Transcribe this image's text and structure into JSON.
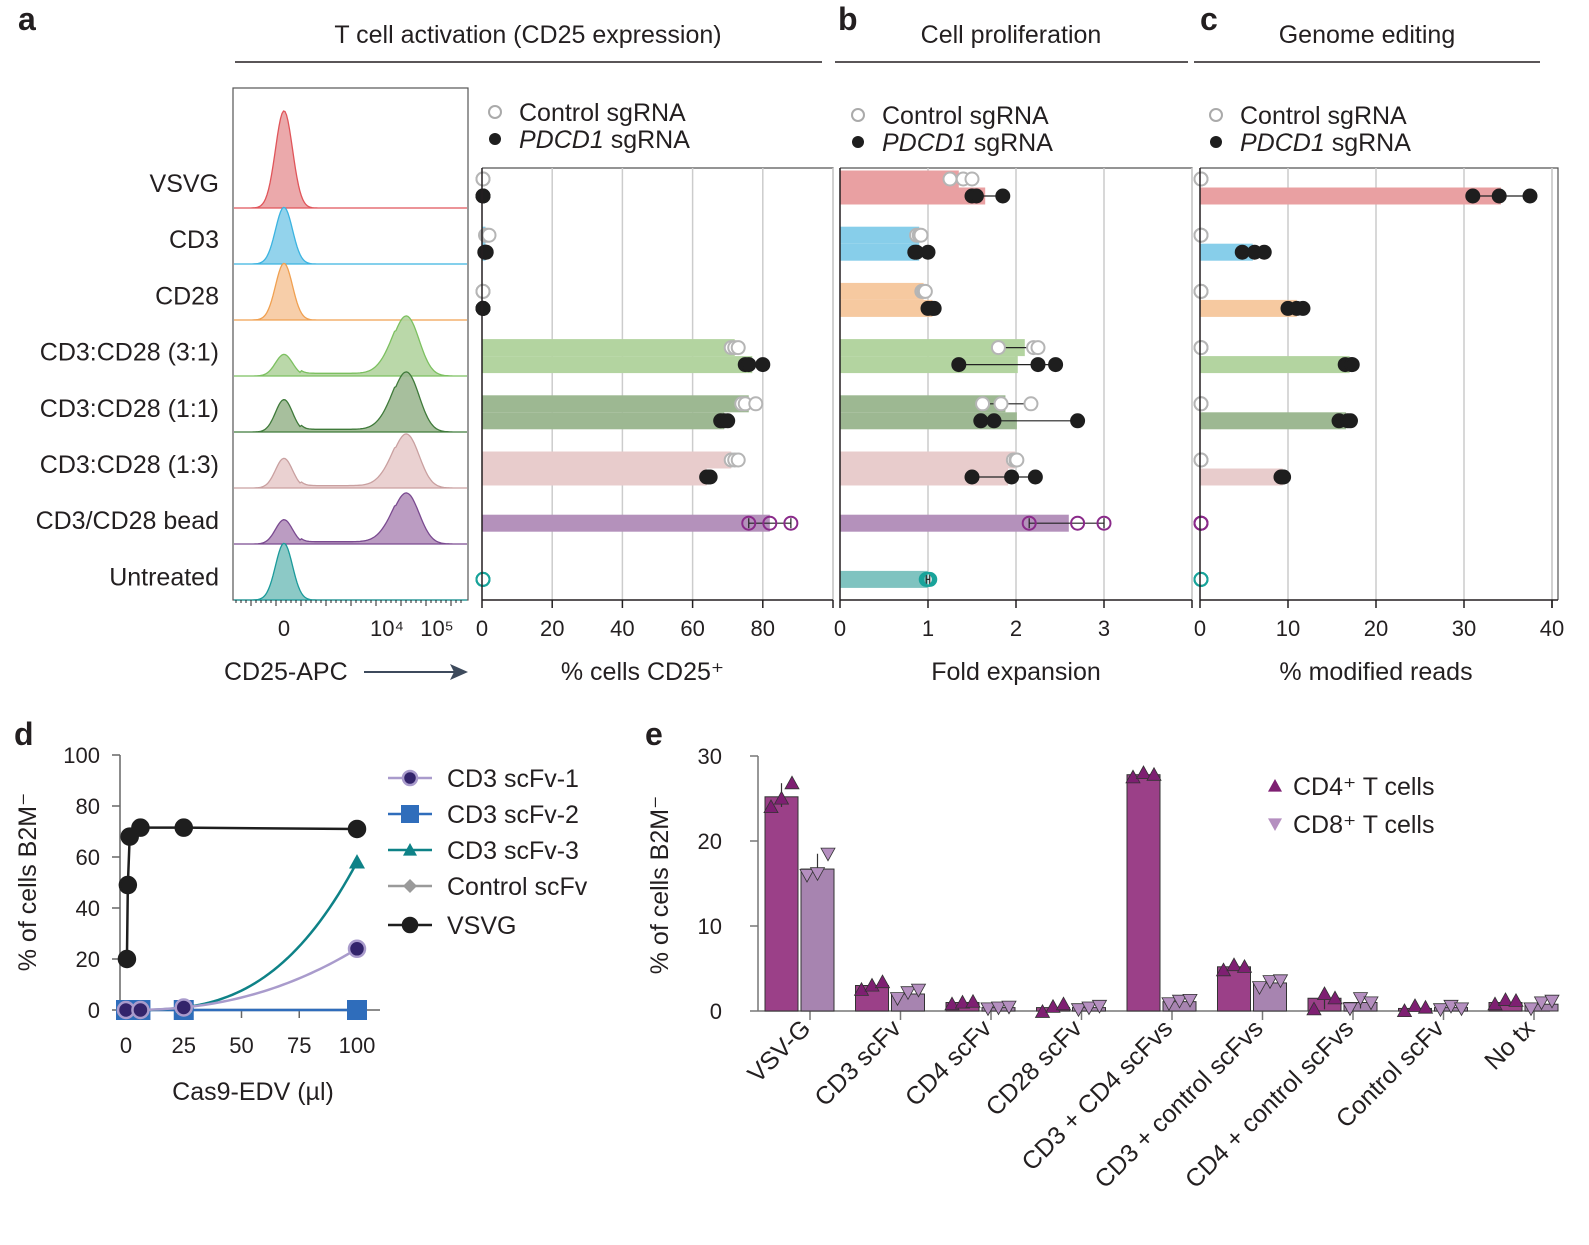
{
  "panel_labels": [
    "a",
    "b",
    "c",
    "d",
    "e"
  ],
  "legend_ab": {
    "control": "Control sgRNA",
    "pdcd1_gene": "PDCD1",
    "pdcd1_suffix": " sgRNA"
  },
  "row_labels": [
    "VSVG",
    "CD3",
    "CD28",
    "CD3:CD28 (3:1)",
    "CD3:CD28 (1:1)",
    "CD3:CD28 (1:3)",
    "CD3/CD28 bead",
    "Untreated"
  ],
  "row_colors": [
    "#e9a0a2",
    "#87ceea",
    "#f6c9a0",
    "#b3d4a0",
    "#9db892",
    "#e8cccc",
    "#b491bb",
    "#7fc3c0"
  ],
  "hist_colors": [
    "#e0555a",
    "#3bb3e0",
    "#f0a050",
    "#7cc060",
    "#3f7a3a",
    "#c9a0a0",
    "#7a4a90",
    "#1a9a9a"
  ],
  "single_marker_colors": {
    "CD3/CD28 bead": "#8a2a8a",
    "Untreated": "#19a39a"
  },
  "chart_data": [
    {
      "panel": "a",
      "type": "histogram",
      "title": "T cell activation (CD25 expression)",
      "xlabel": "CD25-APC",
      "x_ticks": [
        "0",
        "10⁴",
        "10⁵"
      ],
      "rows": [
        {
          "label": "VSVG",
          "low_peak": 1.8,
          "high_peak": 0
        },
        {
          "label": "CD3",
          "low_peak": 1.05,
          "high_peak": 0
        },
        {
          "label": "CD28",
          "low_peak": 1.05,
          "high_peak": 0
        },
        {
          "label": "CD3:CD28 (3:1)",
          "low_peak": 0.4,
          "high_peak": 1.0
        },
        {
          "label": "CD3:CD28 (1:1)",
          "low_peak": 0.6,
          "high_peak": 1.0
        },
        {
          "label": "CD3:CD28 (1:3)",
          "low_peak": 0.55,
          "high_peak": 0.9
        },
        {
          "label": "CD3/CD28 bead",
          "low_peak": 0.45,
          "high_peak": 0.85
        },
        {
          "label": "Untreated",
          "low_peak": 1.05,
          "high_peak": 0
        }
      ]
    },
    {
      "panel": "a",
      "type": "bar",
      "orientation": "horizontal",
      "xlabel": "% cells CD25⁺",
      "xlim": [
        0,
        100
      ],
      "ticks": [
        0,
        20,
        40,
        60,
        80
      ],
      "grid": true,
      "rows": [
        {
          "label": "VSVG",
          "control": {
            "mean": 0,
            "points": [
              0,
              0,
              0
            ]
          },
          "pdcd1": {
            "mean": 0,
            "points": [
              0,
              0,
              0
            ]
          }
        },
        {
          "label": "CD3",
          "control": {
            "mean": 1,
            "points": [
              1,
              1.5,
              2
            ]
          },
          "pdcd1": {
            "mean": 1,
            "points": [
              0.8,
              1,
              1.2
            ]
          }
        },
        {
          "label": "CD28",
          "control": {
            "mean": 0,
            "points": [
              0,
              0,
              0
            ]
          },
          "pdcd1": {
            "mean": 0,
            "points": [
              0,
              0,
              0
            ]
          }
        },
        {
          "label": "CD3:CD28 (3:1)",
          "control": {
            "mean": 72,
            "points": [
              71,
              72,
              73
            ]
          },
          "pdcd1": {
            "mean": 77,
            "points": [
              75,
              76,
              80
            ]
          }
        },
        {
          "label": "CD3:CD28 (1:1)",
          "control": {
            "mean": 76,
            "points": [
              74,
              75,
              78
            ]
          },
          "pdcd1": {
            "mean": 69,
            "points": [
              68,
              69,
              70
            ]
          }
        },
        {
          "label": "CD3:CD28 (1:3)",
          "control": {
            "mean": 71,
            "points": [
              71,
              72,
              73
            ]
          },
          "pdcd1": {
            "mean": 64,
            "points": [
              64,
              64.5,
              65
            ]
          }
        },
        {
          "label": "CD3/CD28 bead",
          "single": {
            "mean": 82,
            "points": [
              76,
              82,
              88
            ]
          }
        },
        {
          "label": "Untreated",
          "single": {
            "mean": 0,
            "points": [
              0,
              0,
              0
            ]
          }
        }
      ]
    },
    {
      "panel": "b",
      "type": "bar",
      "orientation": "horizontal",
      "title": "Cell proliferation",
      "xlabel": "Fold expansion",
      "xlim": [
        0,
        4
      ],
      "ticks": [
        0,
        1,
        2,
        3
      ],
      "grid": true,
      "rows": [
        {
          "label": "VSVG",
          "control": {
            "mean": 1.35,
            "points": [
              1.25,
              1.4,
              1.5
            ]
          },
          "pdcd1": {
            "mean": 1.65,
            "points": [
              1.5,
              1.55,
              1.85
            ]
          }
        },
        {
          "label": "CD3",
          "control": {
            "mean": 0.9,
            "points": [
              0.87,
              0.9,
              0.92
            ]
          },
          "pdcd1": {
            "mean": 0.9,
            "points": [
              0.85,
              0.87,
              1.0
            ]
          }
        },
        {
          "label": "CD28",
          "control": {
            "mean": 0.95,
            "points": [
              0.93,
              0.95,
              0.97
            ]
          },
          "pdcd1": {
            "mean": 1.05,
            "points": [
              1.0,
              1.05,
              1.07
            ]
          }
        },
        {
          "label": "CD3:CD28 (3:1)",
          "control": {
            "mean": 2.1,
            "points": [
              1.8,
              2.2,
              2.25
            ]
          },
          "pdcd1": {
            "mean": 2.02,
            "points": [
              1.35,
              2.25,
              2.45
            ]
          }
        },
        {
          "label": "CD3:CD28 (1:1)",
          "control": {
            "mean": 1.88,
            "points": [
              1.62,
              1.83,
              2.17
            ]
          },
          "pdcd1": {
            "mean": 2.01,
            "points": [
              1.6,
              1.75,
              2.7
            ]
          }
        },
        {
          "label": "CD3:CD28 (1:3)",
          "control": {
            "mean": 1.99,
            "points": [
              1.97,
              2.0,
              2.01
            ]
          },
          "pdcd1": {
            "mean": 1.91,
            "points": [
              1.5,
              1.95,
              2.22
            ]
          }
        },
        {
          "label": "CD3/CD28 bead",
          "single": {
            "mean": 2.6,
            "points": [
              2.15,
              2.7,
              3.0
            ]
          }
        },
        {
          "label": "Untreated",
          "single": {
            "mean": 1.0,
            "points": [
              0.98,
              1.0,
              1.02
            ]
          }
        }
      ]
    },
    {
      "panel": "c",
      "type": "bar",
      "orientation": "horizontal",
      "title": "Genome editing",
      "xlabel": "% modified reads",
      "xlim": [
        0,
        40
      ],
      "ticks": [
        0,
        10,
        20,
        30,
        40
      ],
      "grid": true,
      "rows": [
        {
          "label": "VSVG",
          "control": {
            "mean": 0,
            "points": [
              0,
              0,
              0
            ]
          },
          "pdcd1": {
            "mean": 34.2,
            "points": [
              31,
              34,
              37.5
            ]
          }
        },
        {
          "label": "CD3",
          "control": {
            "mean": 0,
            "points": [
              0,
              0,
              0
            ]
          },
          "pdcd1": {
            "mean": 6,
            "points": [
              4.8,
              6.2,
              7.3
            ]
          }
        },
        {
          "label": "CD28",
          "control": {
            "mean": 0,
            "points": [
              0,
              0,
              0
            ]
          },
          "pdcd1": {
            "mean": 11,
            "points": [
              10,
              11,
              11.7
            ]
          }
        },
        {
          "label": "CD3:CD28 (3:1)",
          "control": {
            "mean": 0,
            "points": [
              0,
              0,
              0
            ]
          },
          "pdcd1": {
            "mean": 17,
            "points": [
              16.5,
              17.2,
              17.3
            ]
          }
        },
        {
          "label": "CD3:CD28 (1:1)",
          "control": {
            "mean": 0,
            "points": [
              0,
              0,
              0
            ]
          },
          "pdcd1": {
            "mean": 16.6,
            "points": [
              15.8,
              16.8,
              17.1
            ]
          }
        },
        {
          "label": "CD3:CD28 (1:3)",
          "control": {
            "mean": 0,
            "points": [
              0,
              0,
              0
            ]
          },
          "pdcd1": {
            "mean": 9.4,
            "points": [
              9.2,
              9.4,
              9.5
            ]
          }
        },
        {
          "label": "CD3/CD28 bead",
          "single": {
            "mean": 0,
            "points": [
              0,
              0,
              0
            ]
          }
        },
        {
          "label": "Untreated",
          "single": {
            "mean": 0,
            "points": [
              0,
              0,
              0
            ]
          }
        }
      ]
    },
    {
      "panel": "d",
      "type": "line",
      "xlabel": "Cas9-EDV (µl)",
      "ylabel": "% of cells B2M⁻",
      "xlim": [
        0,
        100
      ],
      "ylim": [
        0,
        100
      ],
      "xticks": [
        0,
        25,
        50,
        75,
        100
      ],
      "yticks": [
        0,
        20,
        40,
        60,
        80,
        100
      ],
      "legend_position": "right",
      "series": [
        {
          "name": "CD3 scFv-1",
          "color": "#a99bcc",
          "marker": "circle",
          "marker_fill": "#33246b",
          "x": [
            0,
            6.25,
            25,
            100
          ],
          "y": [
            0,
            0,
            1,
            24
          ]
        },
        {
          "name": "CD3 scFv-2",
          "color": "#2f6dbb",
          "marker": "square",
          "marker_fill": "#2f6dbb",
          "x": [
            0,
            6.25,
            25,
            100
          ],
          "y": [
            0,
            0,
            0,
            0
          ]
        },
        {
          "name": "CD3 scFv-3",
          "color": "#0e8287",
          "marker": "triangle",
          "marker_fill": "#0e8287",
          "x": [
            0,
            6.25,
            25,
            100
          ],
          "y": [
            0,
            0,
            1,
            58
          ]
        },
        {
          "name": "Control scFv",
          "color": "#9a9a9a",
          "marker": "diamond",
          "marker_fill": "#9a9a9a",
          "x": [
            0,
            6.25,
            25,
            100
          ],
          "y": [
            0,
            0,
            0,
            0
          ]
        },
        {
          "name": "VSVG",
          "color": "#1e1e1e",
          "marker": "circle",
          "marker_fill": "#1e1e1e",
          "x": [
            0.4,
            0.8,
            1.6,
            6.25,
            25,
            100
          ],
          "y": [
            20,
            49,
            68,
            71.5,
            71.5,
            71
          ]
        }
      ]
    },
    {
      "panel": "e",
      "type": "bar",
      "ylabel": "% of cells B2M⁻",
      "ylim": [
        0,
        30
      ],
      "yticks": [
        0,
        10,
        20,
        30
      ],
      "legend_position": "top-right",
      "categories": [
        "VSV-G",
        "CD3 scFv",
        "CD4 scFv",
        "CD28 scFv",
        "CD3 + CD4 scFvs",
        "CD3 + control scFvs",
        "CD4 + control scFvs",
        "Control scFv",
        "No tx"
      ],
      "series": [
        {
          "name": "CD4⁺ T cells",
          "color": "#9b4088",
          "marker_color": "#7e1f72",
          "marker": "triangle-up",
          "values": [
            25.2,
            3.0,
            1.0,
            0.4,
            27.8,
            5.2,
            1.5,
            0.3,
            1.0
          ],
          "points": [
            [
              24,
              25,
              26.8
            ],
            [
              2.5,
              3,
              3.4
            ],
            [
              0.8,
              1,
              1.1
            ],
            [
              -0.1,
              0.5,
              0.8
            ],
            [
              27.5,
              28,
              27.8
            ],
            [
              4.8,
              5.4,
              5.2
            ],
            [
              0.2,
              2,
              1.5
            ],
            [
              0,
              0.6,
              0.4
            ],
            [
              0.8,
              1.3,
              1.2
            ]
          ]
        },
        {
          "name": "CD8⁺ T cells",
          "color": "#a784b0",
          "marker_color": "#b58fc0",
          "marker": "triangle-down",
          "values": [
            16.7,
            2.0,
            0.4,
            0.4,
            1.1,
            3.3,
            1.0,
            0.4,
            0.8
          ],
          "points": [
            [
              16,
              16.2,
              18.5
            ],
            [
              1.5,
              2.2,
              2.5
            ],
            [
              0.3,
              0.4,
              0.5
            ],
            [
              0.2,
              0.4,
              0.6
            ],
            [
              0.9,
              1.2,
              1.3
            ],
            [
              2.8,
              3.5,
              3.6
            ],
            [
              0.3,
              1.5,
              1
            ],
            [
              0.2,
              0.6,
              0.3
            ],
            [
              0.3,
              1,
              1.2
            ]
          ]
        }
      ]
    }
  ]
}
